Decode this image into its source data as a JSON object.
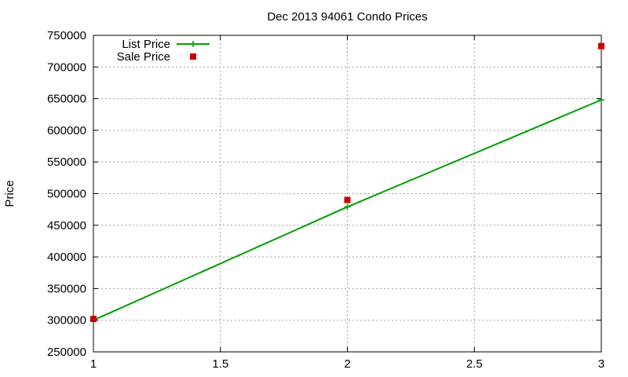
{
  "chart_data": {
    "type": "line",
    "title": "Dec 2013 94061 Condo Prices",
    "xlabel": "",
    "ylabel": "Price",
    "xlim": [
      1,
      3
    ],
    "ylim": [
      250000,
      750000
    ],
    "x_ticks": [
      1,
      1.5,
      2,
      2.5,
      3
    ],
    "x_tick_labels": [
      "1",
      "1.5",
      "2",
      "2.5",
      "3"
    ],
    "y_ticks": [
      250000,
      300000,
      350000,
      400000,
      450000,
      500000,
      550000,
      600000,
      650000,
      700000,
      750000
    ],
    "y_tick_labels": [
      "250000",
      "300000",
      "350000",
      "400000",
      "450000",
      "500000",
      "550000",
      "600000",
      "650000",
      "700000",
      "750000"
    ],
    "grid": true,
    "legend_position": "top-left",
    "series": [
      {
        "name": "List Price",
        "style": "linespoints",
        "marker": "plus",
        "color": "#009e00",
        "x": [
          1,
          2,
          3
        ],
        "y": [
          300000,
          479000,
          648000
        ]
      },
      {
        "name": "Sale Price",
        "style": "points",
        "marker": "square",
        "color": "#cc0000",
        "x": [
          1,
          2,
          3
        ],
        "y": [
          302000,
          490000,
          733000
        ]
      }
    ]
  }
}
